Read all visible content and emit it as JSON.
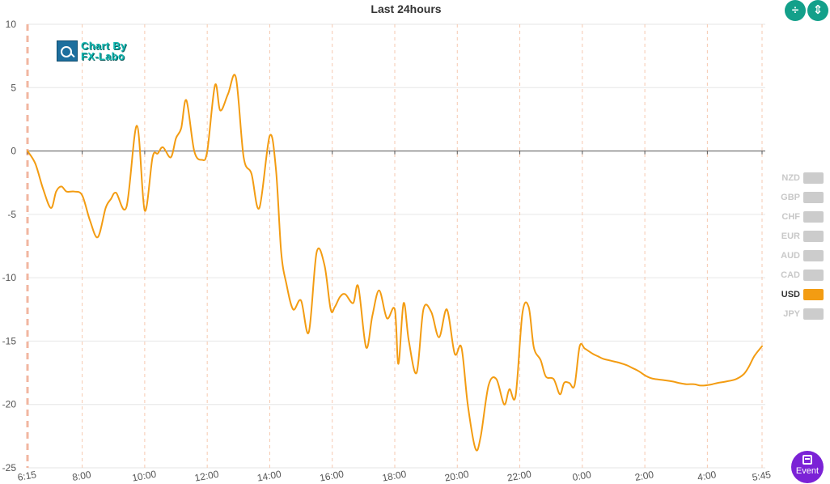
{
  "title": "Last 24hours",
  "logo": {
    "line1": "Chart By",
    "line2": "FX-Labo"
  },
  "toolbar": {
    "collapse_icon": "collapse-vertical-icon",
    "expand_icon": "expand-vertical-icon"
  },
  "event_button": {
    "label": "Event",
    "icon": "calendar-icon"
  },
  "legend": [
    {
      "name": "NZD",
      "active": false
    },
    {
      "name": "GBP",
      "active": false
    },
    {
      "name": "CHF",
      "active": false
    },
    {
      "name": "EUR",
      "active": false
    },
    {
      "name": "AUD",
      "active": false
    },
    {
      "name": "CAD",
      "active": false
    },
    {
      "name": "USD",
      "active": true
    },
    {
      "name": "JPY",
      "active": false
    }
  ],
  "colors": {
    "series": "#f39c12",
    "inactive": "#cccccc",
    "grid": "#e6e6e6",
    "vgrid": "#f6c9b0",
    "accent": "#13a08a",
    "event": "#7b22d6"
  },
  "chart_data": {
    "type": "line",
    "title": "Last 24hours",
    "ylim": [
      -25,
      10
    ],
    "yticks": [
      10,
      5,
      0,
      -5,
      -10,
      -15,
      -20,
      -25
    ],
    "xlabels": [
      "6:15",
      "8:00",
      "10:00",
      "12:00",
      "14:00",
      "16:00",
      "18:00",
      "20:00",
      "22:00",
      "0:00",
      "2:00",
      "4:00",
      "5:45"
    ],
    "xticks_minutes": [
      0,
      105,
      225,
      345,
      465,
      585,
      705,
      825,
      945,
      1065,
      1185,
      1305,
      1410
    ],
    "xlim_minutes": [
      0,
      1410
    ],
    "grid": true,
    "series": [
      {
        "name": "USD",
        "x": [
          0,
          15,
          30,
          45,
          55,
          65,
          75,
          90,
          105,
          120,
          135,
          150,
          160,
          170,
          190,
          210,
          225,
          240,
          250,
          260,
          275,
          285,
          295,
          305,
          320,
          335,
          345,
          360,
          370,
          385,
          400,
          415,
          430,
          445,
          465,
          477,
          487,
          497,
          510,
          525,
          540,
          555,
          570,
          582,
          590,
          600,
          610,
          625,
          635,
          650,
          662,
          675,
          690,
          705,
          712,
          722,
          732,
          747,
          760,
          775,
          790,
          805,
          820,
          833,
          845,
          860,
          870,
          885,
          900,
          915,
          925,
          937,
          950,
          962,
          972,
          985,
          995,
          1010,
          1022,
          1030,
          1040,
          1050,
          1060,
          1070,
          1085,
          1095,
          1105,
          1115,
          1125,
          1135,
          1150,
          1160,
          1170,
          1178,
          1185,
          1195,
          1205,
          1225,
          1240,
          1250,
          1265,
          1280,
          1290,
          1300,
          1315,
          1325,
          1340,
          1360,
          1375,
          1385,
          1395,
          1410
        ],
        "y": [
          0,
          -1,
          -3,
          -4.5,
          -3.2,
          -2.8,
          -3.2,
          -3.2,
          -3.5,
          -5.5,
          -6.8,
          -4.5,
          -3.8,
          -3.3,
          -4.4,
          2,
          -4.7,
          -0.5,
          -0.2,
          0.3,
          -0.5,
          1,
          1.8,
          4,
          0,
          -0.7,
          0,
          5.2,
          3.2,
          4.5,
          5.8,
          -0.5,
          -1.8,
          -4.5,
          1.2,
          -1.5,
          -8,
          -10.5,
          -12.5,
          -11.8,
          -14.3,
          -8,
          -9,
          -12.5,
          -12.3,
          -11.5,
          -11.3,
          -12,
          -10.7,
          -15.5,
          -13,
          -11,
          -13.2,
          -12.5,
          -16.8,
          -12,
          -15,
          -17.5,
          -12.5,
          -12.7,
          -14.7,
          -12.5,
          -16,
          -15.5,
          -20,
          -23.5,
          -22.5,
          -18.5,
          -18,
          -20,
          -18.8,
          -19.3,
          -12.8,
          -12.3,
          -15.5,
          -16.5,
          -17.8,
          -18,
          -19.2,
          -18.3,
          -18.3,
          -18.5,
          -15.4,
          -15.6,
          -16.0,
          -16.2,
          -16.4,
          -16.5,
          -16.6,
          -16.7,
          -16.9,
          -17.1,
          -17.3,
          -17.5,
          -17.7,
          -17.9,
          -18.0,
          -18.1,
          -18.2,
          -18.3,
          -18.4,
          -18.4,
          -18.5,
          -18.5,
          -18.4,
          -18.3,
          -18.2,
          -18.0,
          -17.6,
          -17.0,
          -16.2,
          -15.4
        ]
      }
    ]
  }
}
